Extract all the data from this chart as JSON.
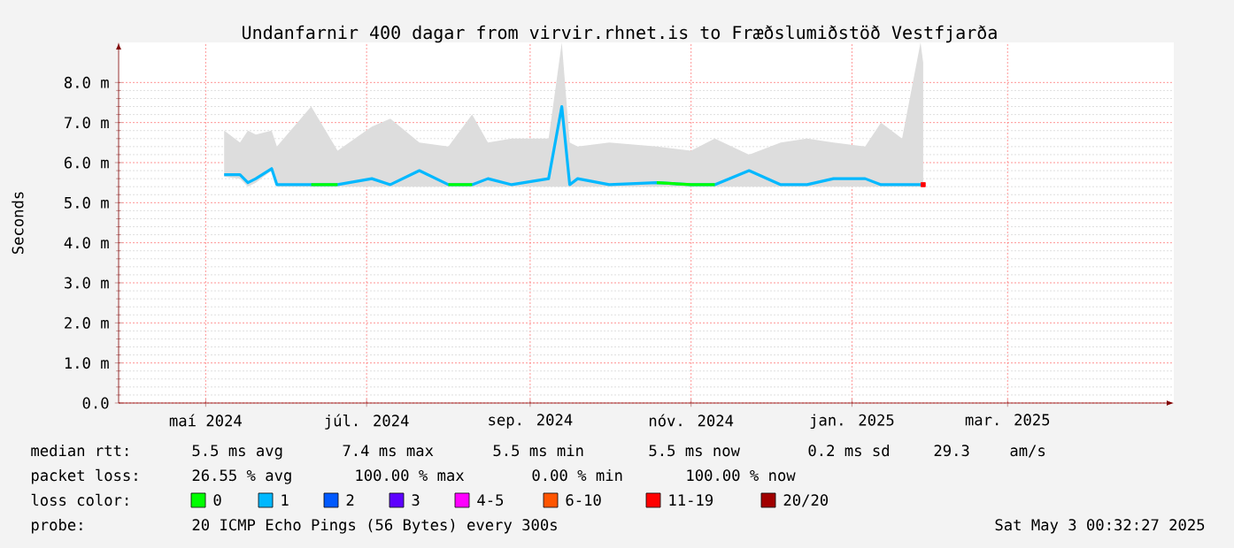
{
  "chart_data": {
    "type": "line",
    "title": "Undanfarnir 400 dagar from virvir.rhnet.is to Fræðslumiðstöð Vestfjarða",
    "ylabel": "Seconds",
    "legend_title": "loss color:",
    "legend": "bottom",
    "grid": true,
    "marker": "none",
    "line_style": "solid",
    "xlim": [
      "2024-03-29",
      "2025-05-03"
    ],
    "xticks": [
      {
        "value": "2024-05-01",
        "label": "maí 2024"
      },
      {
        "value": "2024-07-01",
        "label": "júl. 2024"
      },
      {
        "value": "2024-09-01",
        "label": "sep. 2024"
      },
      {
        "value": "2024-11-01",
        "label": "nóv. 2024"
      },
      {
        "value": "2025-01-01",
        "label": "jan. 2025"
      },
      {
        "value": "2025-03-01",
        "label": "mar. 2025"
      }
    ],
    "ylim": [
      0,
      9
    ],
    "yticks": [
      {
        "value": 0,
        "label": "0.0"
      },
      {
        "value": 1,
        "label": "1.0 m"
      },
      {
        "value": 2,
        "label": "2.0 m"
      },
      {
        "value": 3,
        "label": "3.0 m"
      },
      {
        "value": 4,
        "label": "4.0 m"
      },
      {
        "value": 5,
        "label": "5.0 m"
      },
      {
        "value": 6,
        "label": "6.0 m"
      },
      {
        "value": 7,
        "label": "7.0 m"
      },
      {
        "value": 8,
        "label": "8.0 m"
      }
    ],
    "x": [
      "2024-05-08",
      "2024-05-14",
      "2024-05-17",
      "2024-05-20",
      "2024-05-26",
      "2024-05-28",
      "2024-06-10",
      "2024-06-20",
      "2024-07-03",
      "2024-07-10",
      "2024-07-21",
      "2024-08-01",
      "2024-08-10",
      "2024-08-16",
      "2024-08-25",
      "2024-09-08",
      "2024-09-13",
      "2024-09-16",
      "2024-09-19",
      "2024-10-01",
      "2024-10-19",
      "2024-11-01",
      "2024-11-10",
      "2024-11-23",
      "2024-12-05",
      "2024-12-15",
      "2024-12-25",
      "2025-01-06",
      "2025-01-12",
      "2025-01-20",
      "2025-01-27",
      "2025-01-28"
    ],
    "series": [
      {
        "name": "1",
        "color": "#00b8ff",
        "values": [
          5.7,
          5.7,
          5.5,
          5.6,
          5.85,
          5.45,
          5.45,
          5.45,
          5.6,
          5.45,
          5.8,
          5.45,
          5.45,
          5.6,
          5.45,
          5.6,
          7.4,
          5.45,
          5.6,
          5.45,
          5.5,
          5.45,
          5.45,
          5.8,
          5.45,
          5.45,
          5.6,
          5.6,
          5.45,
          5.45,
          5.45,
          5.45
        ],
        "lower": [
          5.65,
          5.6,
          5.4,
          5.5,
          5.8,
          5.4,
          5.4,
          5.4,
          5.4,
          5.4,
          5.4,
          5.4,
          5.4,
          5.4,
          5.4,
          5.4,
          5.4,
          5.4,
          5.4,
          5.4,
          5.4,
          5.4,
          5.4,
          5.4,
          5.4,
          5.4,
          5.4,
          5.4,
          5.4,
          5.4,
          5.4,
          5.4
        ],
        "upper": [
          6.8,
          6.5,
          6.8,
          6.7,
          6.8,
          6.4,
          7.4,
          6.3,
          6.9,
          7.1,
          6.5,
          6.4,
          7.2,
          6.5,
          6.6,
          6.6,
          9.0,
          6.5,
          6.4,
          6.5,
          6.4,
          6.3,
          6.6,
          6.2,
          6.5,
          6.6,
          6.5,
          6.4,
          7.0,
          6.6,
          9.0,
          8.5
        ]
      },
      {
        "name": "0",
        "color": "#00ff00",
        "values": [
          null,
          null,
          null,
          null,
          null,
          null,
          5.45,
          5.45,
          null,
          null,
          null,
          5.45,
          5.45,
          null,
          null,
          null,
          null,
          null,
          null,
          null,
          5.5,
          5.45,
          5.45,
          null,
          null,
          null,
          null,
          null,
          null,
          null,
          null,
          null
        ]
      },
      {
        "name": "2",
        "color": "#0059ff",
        "values": [
          null,
          null,
          null,
          null,
          null,
          null,
          null,
          null,
          null,
          null,
          null,
          null,
          null,
          null,
          null,
          null,
          null,
          null,
          null,
          null,
          null,
          null,
          null,
          null,
          null,
          null,
          null,
          null,
          null,
          null,
          null,
          null
        ]
      },
      {
        "name": "3",
        "color": "#5e00ff",
        "values": [
          null,
          null,
          null,
          null,
          null,
          null,
          null,
          null,
          null,
          null,
          null,
          null,
          null,
          null,
          null,
          null,
          null,
          null,
          null,
          null,
          null,
          null,
          null,
          null,
          null,
          null,
          null,
          null,
          null,
          null,
          null,
          null
        ]
      },
      {
        "name": "4-5",
        "color": "#ff00ff",
        "values": [
          null,
          null,
          null,
          null,
          null,
          null,
          null,
          null,
          null,
          null,
          null,
          null,
          null,
          null,
          null,
          null,
          null,
          null,
          null,
          null,
          null,
          null,
          null,
          null,
          null,
          null,
          null,
          null,
          null,
          null,
          null,
          null
        ]
      },
      {
        "name": "6-10",
        "color": "#ff5500",
        "values": [
          null,
          null,
          null,
          null,
          null,
          null,
          null,
          null,
          null,
          null,
          null,
          null,
          null,
          null,
          null,
          null,
          null,
          null,
          null,
          null,
          null,
          null,
          null,
          null,
          null,
          null,
          null,
          null,
          null,
          null,
          null,
          null
        ]
      },
      {
        "name": "11-19",
        "color": "#ff0000",
        "marker": "square",
        "values": [
          null,
          null,
          null,
          null,
          null,
          null,
          null,
          null,
          null,
          null,
          null,
          null,
          null,
          null,
          null,
          null,
          null,
          null,
          null,
          null,
          null,
          null,
          null,
          null,
          null,
          null,
          null,
          null,
          null,
          null,
          null,
          5.45
        ]
      },
      {
        "name": "20/20",
        "color": "#a10000",
        "values": [
          null,
          null,
          null,
          null,
          null,
          null,
          null,
          null,
          null,
          null,
          null,
          null,
          null,
          null,
          null,
          null,
          null,
          null,
          null,
          null,
          null,
          null,
          null,
          null,
          null,
          null,
          null,
          null,
          null,
          null,
          null,
          null
        ]
      }
    ],
    "annotations": [
      "median rtt:",
      "5.5 ms avg",
      "7.4 ms max",
      "5.5 ms min",
      "5.5 ms now",
      "0.2 ms sd",
      "29.3",
      "am/s",
      "packet loss:",
      "26.55 % avg",
      "100.00 % max",
      "0.00 % min",
      "100.00 % now",
      "probe:",
      "20 ICMP Echo Pings (56 Bytes) every 300s",
      "Sat May  3 00:32:27 2025"
    ]
  }
}
